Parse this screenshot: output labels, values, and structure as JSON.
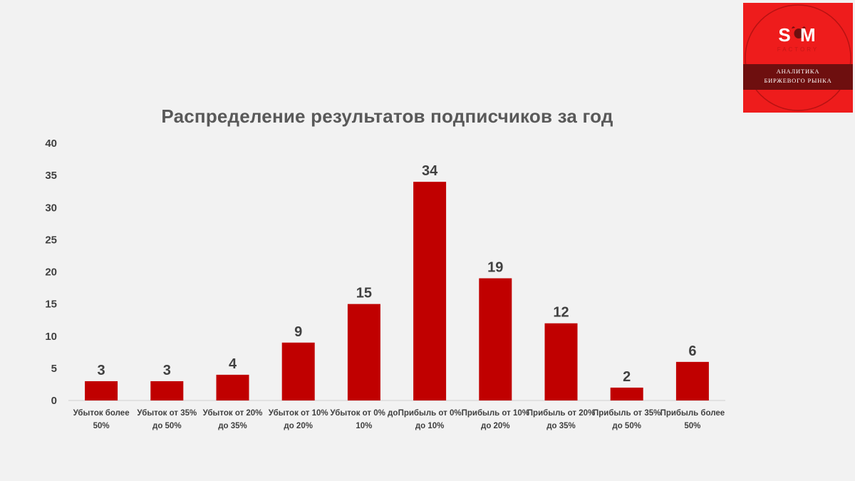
{
  "chart_data": {
    "type": "bar",
    "title": "Распределение результатов подписчиков за год",
    "categories": [
      "Убыток более 50%",
      "Убыток от 35% до 50%",
      "Убыток от 20% до 35%",
      "Убыток от 10% до 20%",
      "Убыток от 0% до 10%",
      "Прибыль от 0% до 10%",
      "Прибыль от 10% до 20%",
      "Прибыль от 20% до 35%",
      "Прибыль от 35% до 50%",
      "Прибыль более 50%"
    ],
    "values": [
      3,
      3,
      4,
      9,
      15,
      34,
      19,
      12,
      2,
      6
    ],
    "yticks": [
      0,
      5,
      10,
      15,
      20,
      25,
      30,
      35,
      40
    ],
    "ylim": [
      0,
      40
    ],
    "xlabel": "",
    "ylabel": "",
    "grid": false,
    "bar_color": "#c00000"
  },
  "logo": {
    "name": "S M",
    "subtitle": "FACTORY",
    "tagline_1": "АНАЛИТИКА",
    "tagline_2": "БИРЖЕВОГО РЫНКА",
    "color": "#ee1c1c"
  }
}
